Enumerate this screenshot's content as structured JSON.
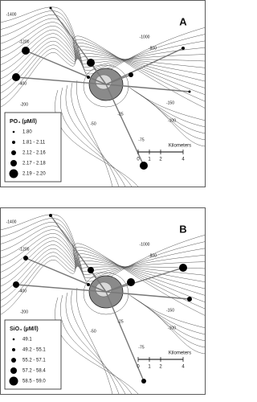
{
  "panels": [
    {
      "label": "A",
      "contour_labels": [
        "-1400",
        "-1200",
        "-1000",
        "-800",
        "-400",
        "-200",
        "-25",
        "-50",
        "-75",
        "-100",
        "-150"
      ],
      "legend": {
        "title": "PO₄ (µM/l)",
        "items": [
          "1.80",
          "1.81 - 2.11",
          "2.12 - 2.16",
          "2.17 - 2.18",
          "2.19 - 2.20"
        ]
      },
      "scale": {
        "ticks": [
          "0",
          "1",
          "2",
          "4"
        ],
        "unit": "Kilometers"
      }
    },
    {
      "label": "B",
      "contour_labels": [
        "-1400",
        "-1200",
        "-1000",
        "-800",
        "-400",
        "-200",
        "-25",
        "-50",
        "-75",
        "-100",
        "-150"
      ],
      "legend": {
        "title": "SiO₄ (µM/l)",
        "items": [
          "49.1",
          "49.2 - 55.1",
          "55.2 - 57.1",
          "57.2 - 58.4",
          "58.5 - 59.0"
        ]
      },
      "scale": {
        "ticks": [
          "0",
          "1",
          "2",
          "4"
        ],
        "unit": "Kilometers"
      }
    }
  ]
}
